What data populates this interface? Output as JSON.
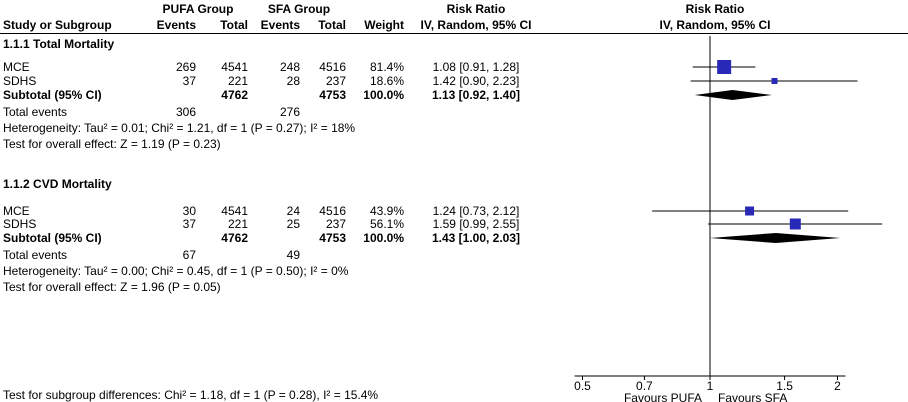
{
  "colors": {
    "marker": "#2929b8",
    "diamond": "#000000",
    "line": "#000000"
  },
  "header": {
    "group1": "PUFA Group",
    "group2": "SFA Group",
    "rr_text_title": "Risk Ratio",
    "rr_plot_title": "Risk Ratio",
    "col_study": "Study or Subgroup",
    "col_events": "Events",
    "col_total": "Total",
    "col_events2": "Events",
    "col_total2": "Total",
    "col_weight": "Weight",
    "col_ci": "IV, Random, 95% CI",
    "col_ci_plot": "IV, Random, 95% CI"
  },
  "subgroups": [
    {
      "title": "1.1.1 Total Mortality",
      "studies": [
        {
          "name": "MCE",
          "e1": "269",
          "t1": "4541",
          "e2": "248",
          "t2": "4516",
          "weight": "81.4%",
          "ci": "1.08 [0.91, 1.28]"
        },
        {
          "name": "SDHS",
          "e1": "37",
          "t1": "221",
          "e2": "28",
          "t2": "237",
          "weight": "18.6%",
          "ci": "1.42 [0.90, 2.23]"
        }
      ],
      "subtotal": {
        "label": "Subtotal (95% CI)",
        "t1": "4762",
        "t2": "4753",
        "weight": "100.0%",
        "ci": "1.13 [0.92, 1.40]"
      },
      "total_events": {
        "label": "Total events",
        "e1": "306",
        "e2": "276"
      },
      "heterogeneity": "Heterogeneity: Tau² = 0.01; Chi² = 1.21, df = 1 (P = 0.27); I² = 18%",
      "overall": "Test for overall effect: Z = 1.19 (P = 0.23)"
    },
    {
      "title": "1.1.2 CVD Mortality",
      "studies": [
        {
          "name": "MCE",
          "e1": "30",
          "t1": "4541",
          "e2": "24",
          "t2": "4516",
          "weight": "43.9%",
          "ci": "1.24 [0.73, 2.12]"
        },
        {
          "name": "SDHS",
          "e1": "37",
          "t1": "221",
          "e2": "25",
          "t2": "237",
          "weight": "56.1%",
          "ci": "1.59 [0.99, 2.55]"
        }
      ],
      "subtotal": {
        "label": "Subtotal (95% CI)",
        "t1": "4762",
        "t2": "4753",
        "weight": "100.0%",
        "ci": "1.43 [1.00, 2.03]"
      },
      "total_events": {
        "label": "Total events",
        "e1": "67",
        "e2": "49"
      },
      "heterogeneity": "Heterogeneity: Tau² = 0.00; Chi² = 0.45, df = 1 (P = 0.50); I² = 0%",
      "overall": "Test for overall effect: Z = 1.96 (P = 0.05)"
    }
  ],
  "axis": {
    "tick_labels": [
      "0.5",
      "0.7",
      "1",
      "1.5",
      "2"
    ],
    "favours_left": "Favours PUFA",
    "favours_right": "Favours SFA"
  },
  "footer": "Test for subgroup differences: Chi² = 1.18, df = 1 (P = 0.28), I² = 15.4%",
  "chart_data": {
    "type": "forest",
    "scale": "log",
    "measure": "Risk Ratio, IV, Random, 95% CI",
    "x_ticks": [
      0.5,
      0.7,
      1,
      1.5,
      2
    ],
    "null_line": 1,
    "subgroups": [
      {
        "name": "1.1.1 Total Mortality",
        "studies": [
          {
            "name": "MCE",
            "rr": 1.08,
            "ci_low": 0.91,
            "ci_high": 1.28,
            "weight_pct": 81.4
          },
          {
            "name": "SDHS",
            "rr": 1.42,
            "ci_low": 0.9,
            "ci_high": 2.23,
            "weight_pct": 18.6
          }
        ],
        "subtotal": {
          "rr": 1.13,
          "ci_low": 0.92,
          "ci_high": 1.4
        },
        "heterogeneity": {
          "tau2": 0.01,
          "chi2": 1.21,
          "df": 1,
          "p": 0.27,
          "i2_pct": 18
        },
        "overall_effect": {
          "z": 1.19,
          "p": 0.23
        }
      },
      {
        "name": "1.1.2 CVD Mortality",
        "studies": [
          {
            "name": "MCE",
            "rr": 1.24,
            "ci_low": 0.73,
            "ci_high": 2.12,
            "weight_pct": 43.9
          },
          {
            "name": "SDHS",
            "rr": 1.59,
            "ci_low": 0.99,
            "ci_high": 2.55,
            "weight_pct": 56.1
          }
        ],
        "subtotal": {
          "rr": 1.43,
          "ci_low": 1.0,
          "ci_high": 2.03
        },
        "heterogeneity": {
          "tau2": 0.0,
          "chi2": 0.45,
          "df": 1,
          "p": 0.5,
          "i2_pct": 0
        },
        "overall_effect": {
          "z": 1.96,
          "p": 0.05
        }
      }
    ],
    "subgroup_difference": {
      "chi2": 1.18,
      "df": 1,
      "p": 0.28,
      "i2_pct": 15.4
    }
  }
}
